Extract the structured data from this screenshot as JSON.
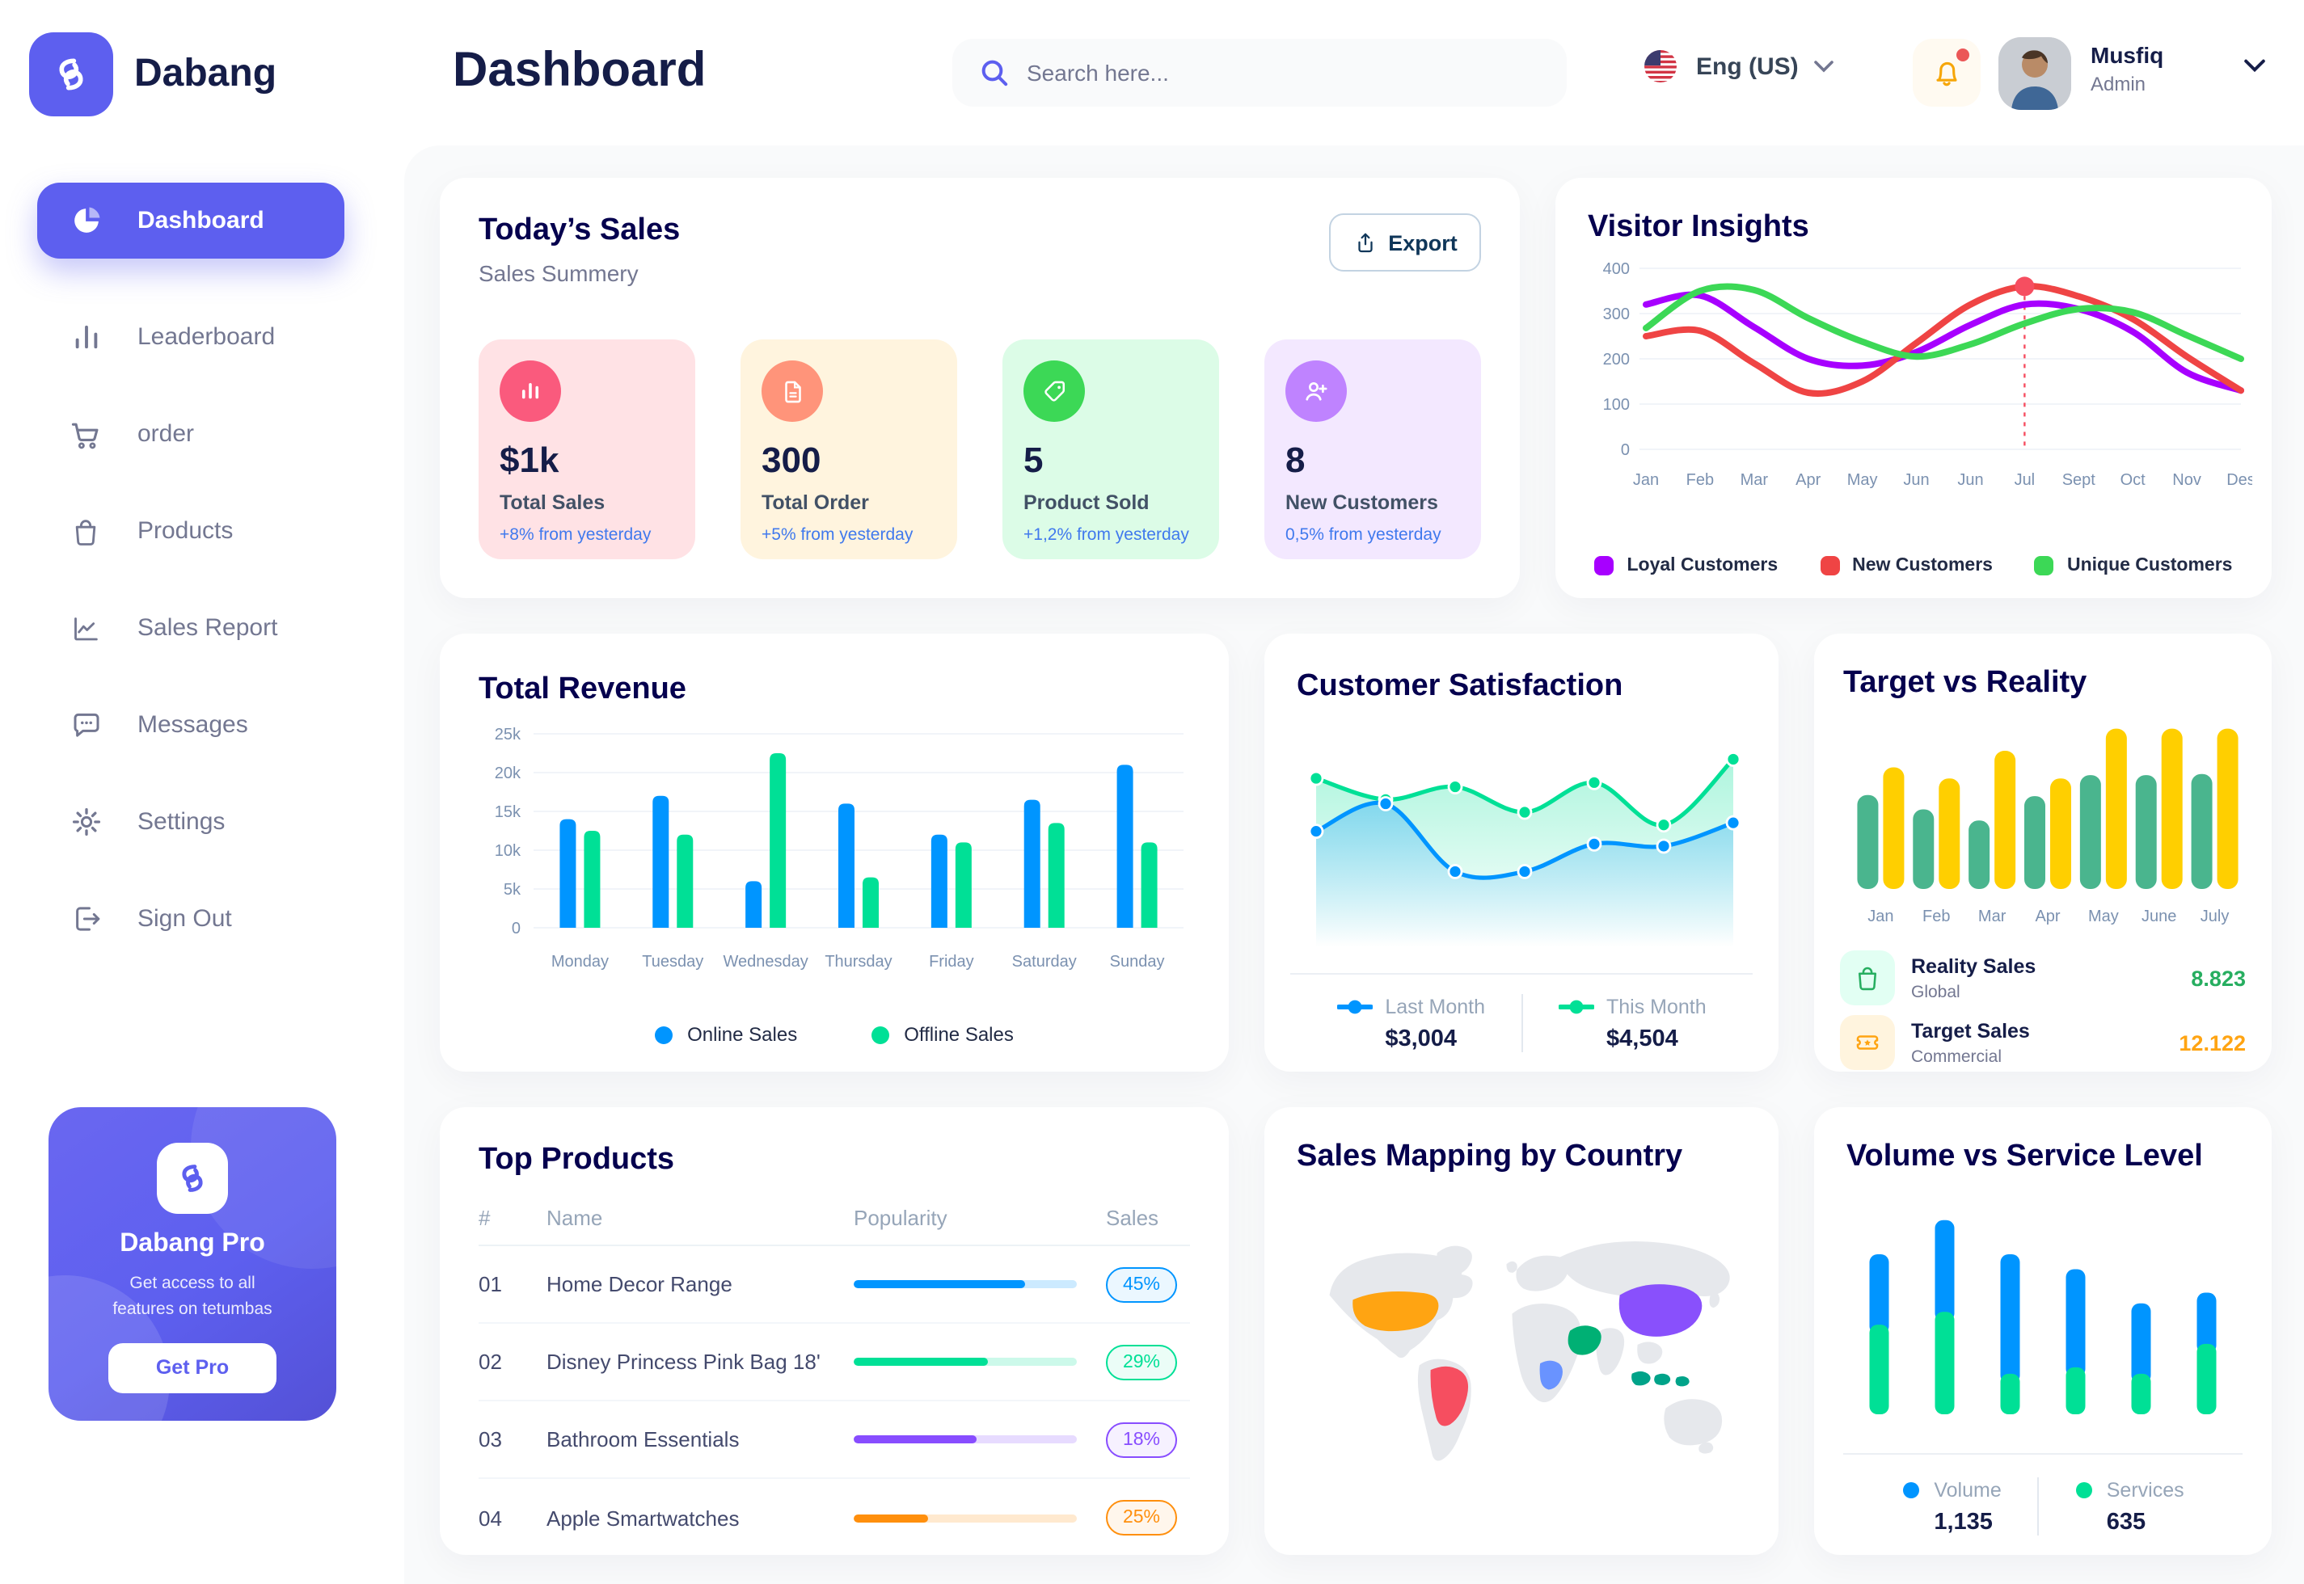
{
  "brand": {
    "name": "Dabang"
  },
  "header": {
    "title": "Dashboard",
    "search_placeholder": "Search here...",
    "language": "Eng (US)",
    "user": {
      "name": "Musfiq",
      "role": "Admin"
    }
  },
  "sidebar": {
    "items": [
      {
        "label": "Dashboard",
        "icon": "pie",
        "active": true
      },
      {
        "label": "Leaderboard",
        "icon": "leaderboard",
        "active": false
      },
      {
        "label": "order",
        "icon": "cart",
        "active": false
      },
      {
        "label": "Products",
        "icon": "bag",
        "active": false
      },
      {
        "label": "Sales Report",
        "icon": "report",
        "active": false
      },
      {
        "label": "Messages",
        "icon": "chat",
        "active": false
      },
      {
        "label": "Settings",
        "icon": "gear",
        "active": false
      },
      {
        "label": "Sign Out",
        "icon": "signout",
        "active": false
      }
    ],
    "promo": {
      "title": "Dabang Pro",
      "desc_line1": "Get access to all",
      "desc_line2": "features on tetumbas",
      "button": "Get Pro"
    }
  },
  "today_sales": {
    "title": "Today’s Sales",
    "subtitle": "Sales Summery",
    "export_label": "Export",
    "cards": [
      {
        "value": "$1k",
        "label": "Total Sales",
        "delta": "+8% from yesterday",
        "bg": "#FFE2E5",
        "icon_bg": "#FA5A7D",
        "icon": "chart-bar",
        "icon_name": "bar-chart-icon"
      },
      {
        "value": "300",
        "label": "Total Order",
        "delta": "+5% from yesterday",
        "bg": "#FFF4DE",
        "icon_bg": "#FF947A",
        "icon": "file",
        "icon_name": "order-file-icon"
      },
      {
        "value": "5",
        "label": "Product Sold",
        "delta": "+1,2% from yesterday",
        "bg": "#DCFCE7",
        "icon_bg": "#3CD856",
        "icon": "tag",
        "icon_name": "tag-icon"
      },
      {
        "value": "8",
        "label": "New Customers",
        "delta": "0,5% from yesterday",
        "bg": "#F3E8FF",
        "icon_bg": "#BF83FF",
        "icon": "user-plus",
        "icon_name": "new-customer-icon"
      }
    ]
  },
  "chart_data": {
    "visitor_insights": {
      "type": "line",
      "title": "Visitor Insights",
      "categories": [
        "Jan",
        "Feb",
        "Mar",
        "Apr",
        "May",
        "Jun",
        "Jun",
        "Jul",
        "Sept",
        "Oct",
        "Nov",
        "Des"
      ],
      "ylim": [
        0,
        400
      ],
      "yticks": [
        0,
        100,
        200,
        300,
        400
      ],
      "grid": true,
      "legend_position": "bottom",
      "series": [
        {
          "name": "Loyal Customers",
          "color": "#A700FF",
          "values": [
            320,
            340,
            270,
            200,
            185,
            215,
            275,
            320,
            310,
            260,
            170,
            130
          ]
        },
        {
          "name": "New Customers",
          "color": "#EF4444",
          "values": [
            250,
            262,
            190,
            125,
            150,
            235,
            320,
            360,
            338,
            288,
            205,
            130
          ]
        },
        {
          "name": "Unique Customers",
          "color": "#3CD856",
          "values": [
            268,
            350,
            352,
            290,
            238,
            205,
            232,
            278,
            310,
            303,
            252,
            200
          ]
        }
      ],
      "highlight": {
        "category": "Jul",
        "index": 7,
        "series": "New Customers",
        "value": 360
      }
    },
    "total_revenue": {
      "type": "bar",
      "title": "Total Revenue",
      "categories": [
        "Monday",
        "Tuesday",
        "Wednesday",
        "Thursday",
        "Friday",
        "Saturday",
        "Sunday"
      ],
      "ylim": [
        0,
        25
      ],
      "ytick_labels": [
        "0",
        "5k",
        "10k",
        "15k",
        "20k",
        "25k"
      ],
      "unit": "k",
      "grid": true,
      "legend_position": "bottom",
      "series": [
        {
          "name": "Online Sales",
          "color": "#0095FF",
          "values": [
            14,
            17,
            6,
            16,
            12,
            16.5,
            21
          ]
        },
        {
          "name": "Offline Sales",
          "color": "#00E096",
          "values": [
            12.5,
            12,
            22.5,
            6.5,
            11,
            13.5,
            11
          ]
        }
      ]
    },
    "customer_satisfaction": {
      "type": "area",
      "title": "Customer Satisfaction",
      "ylim": [
        1,
        5.5
      ],
      "series": [
        {
          "name": "This Month",
          "color": "#00E096",
          "total": "$4,504",
          "values": [
            4.45,
            3.95,
            4.25,
            3.65,
            4.35,
            3.35,
            4.9
          ]
        },
        {
          "name": "Last Month",
          "color": "#0095FF",
          "total": "$3,004",
          "values": [
            3.2,
            3.85,
            2.25,
            2.25,
            2.9,
            2.85,
            3.4
          ]
        }
      ],
      "legend_order": [
        "Last Month",
        "This Month"
      ]
    },
    "target_vs_reality": {
      "type": "bar",
      "title": "Target vs Reality",
      "categories": [
        "Jan",
        "Feb",
        "Mar",
        "Apr",
        "May",
        "June",
        "July"
      ],
      "ylim": [
        0,
        15.5
      ],
      "series": [
        {
          "name": "Reality Sales",
          "color": "#4AB58E",
          "values": [
            8.5,
            7.2,
            6.2,
            8.4,
            10.3,
            10.3,
            10.4
          ]
        },
        {
          "name": "Target Sales",
          "color": "#FFCF00",
          "values": [
            11,
            10,
            12.5,
            10,
            14.5,
            14.5,
            14.5
          ]
        }
      ],
      "legend": [
        {
          "label": "Reality Sales",
          "sublabel": "Global",
          "value": "8.823",
          "value_color": "#27AE60",
          "icon_bg": "#E2FFF3",
          "icon": "bag-green",
          "icon_name": "shopping-bag-icon"
        },
        {
          "label": "Target Sales",
          "sublabel": "Commercial",
          "value": "12.122",
          "value_color": "#FFA412",
          "icon_bg": "#FFF4DE",
          "icon": "ticket-orange",
          "icon_name": "ticket-icon"
        }
      ]
    },
    "top_products": {
      "type": "table",
      "title": "Top Products",
      "headers": [
        "#",
        "Name",
        "Popularity",
        "Sales"
      ],
      "rows": [
        {
          "num": "01",
          "name": "Home Decor Range",
          "popularity_pct": 77,
          "sales": "45%",
          "color": "#0095FF"
        },
        {
          "num": "02",
          "name": "Disney Princess Pink Bag 18'",
          "popularity_pct": 60,
          "sales": "29%",
          "color": "#00E096"
        },
        {
          "num": "03",
          "name": "Bathroom Essentials",
          "popularity_pct": 55,
          "sales": "18%",
          "color": "#884DFF"
        },
        {
          "num": "04",
          "name": "Apple Smartwatches",
          "popularity_pct": 33,
          "sales": "25%",
          "color": "#FF8F0D"
        }
      ]
    },
    "sales_map": {
      "type": "map",
      "title": "Sales Mapping by Country",
      "land_color": "#E6E8EC",
      "countries": [
        {
          "name": "United States",
          "color": "#FFA412"
        },
        {
          "name": "Brazil",
          "color": "#F64E60"
        },
        {
          "name": "DR Congo",
          "color": "#6993FF"
        },
        {
          "name": "Saudi Arabia",
          "color": "#00B074"
        },
        {
          "name": "China",
          "color": "#8950FC"
        },
        {
          "name": "Indonesia",
          "color": "#00A389"
        }
      ]
    },
    "volume_service": {
      "type": "stacked-bar",
      "title": "Volume vs Service Level",
      "ymax": 1000,
      "series": [
        {
          "name": "Volume",
          "color": "#0095FF",
          "total": "1,135",
          "values": [
            330,
            430,
            560,
            460,
            330,
            240
          ]
        },
        {
          "name": "Services",
          "color": "#00E096",
          "total": "635",
          "values": [
            420,
            480,
            190,
            220,
            190,
            330
          ]
        }
      ]
    }
  }
}
